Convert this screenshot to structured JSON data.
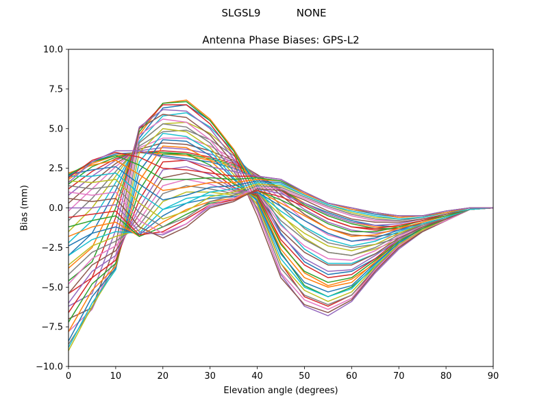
{
  "figure": {
    "suptitle": "SLGSL9           NONE"
  },
  "chart_data": {
    "type": "line",
    "title": "Antenna Phase Biases: GPS-L2",
    "xlabel": "Elevation angle (degrees)",
    "ylabel": "Bias (mm)",
    "xlim": [
      0,
      90
    ],
    "ylim": [
      -10,
      10
    ],
    "xticks": [
      0,
      10,
      20,
      30,
      40,
      50,
      60,
      70,
      80,
      90
    ],
    "yticks": [
      -10.0,
      -7.5,
      -5.0,
      -2.5,
      0.0,
      2.5,
      5.0,
      7.5,
      10.0
    ],
    "xtick_labels": [
      "0",
      "10",
      "20",
      "30",
      "40",
      "50",
      "60",
      "70",
      "80",
      "90"
    ],
    "ytick_labels": [
      "−10.0",
      "−7.5",
      "−5.0",
      "−2.5",
      "0.0",
      "2.5",
      "5.0",
      "7.5",
      "10.0"
    ],
    "grid": false,
    "legend": "none",
    "x": [
      0,
      5,
      10,
      15,
      20,
      25,
      30,
      35,
      40,
      45,
      50,
      55,
      60,
      65,
      70,
      75,
      80,
      85,
      90
    ],
    "colors": [
      "#1f77b4",
      "#ff7f0e",
      "#2ca02c",
      "#d62728",
      "#9467bd",
      "#8c564b",
      "#e377c2",
      "#7f7f7f",
      "#bcbd22",
      "#17becf"
    ],
    "series": [
      {
        "values": [
          2.0,
          2.9,
          3.4,
          3.5,
          3.3,
          3.1,
          2.9,
          2.5,
          1.9,
          1.1,
          0.3,
          -0.3,
          -0.8,
          -1.1,
          -1.2,
          -1.0,
          -0.6,
          -0.1,
          0.0
        ]
      },
      {
        "values": [
          1.8,
          2.8,
          3.3,
          3.5,
          3.4,
          3.3,
          3.0,
          2.6,
          2.0,
          1.2,
          0.3,
          -0.4,
          -0.9,
          -1.2,
          -1.2,
          -1.0,
          -0.6,
          -0.1,
          0.0
        ]
      },
      {
        "values": [
          1.5,
          2.6,
          3.2,
          3.5,
          3.5,
          3.4,
          3.1,
          2.7,
          2.1,
          1.2,
          0.2,
          -0.5,
          -1.0,
          -1.3,
          -1.3,
          -1.0,
          -0.6,
          -0.1,
          0.0
        ]
      },
      {
        "values": [
          1.2,
          2.3,
          3.1,
          3.5,
          3.6,
          3.5,
          3.2,
          2.8,
          2.1,
          1.1,
          0.1,
          -0.7,
          -1.2,
          -1.4,
          -1.3,
          -1.0,
          -0.6,
          -0.1,
          0.0
        ]
      },
      {
        "values": [
          0.8,
          2.0,
          3.0,
          3.6,
          3.8,
          3.7,
          3.4,
          2.9,
          2.1,
          1.0,
          -0.1,
          -0.9,
          -1.4,
          -1.6,
          -1.4,
          -1.1,
          -0.6,
          -0.1,
          0.0
        ]
      },
      {
        "values": [
          0.3,
          1.6,
          2.8,
          3.7,
          4.1,
          4.0,
          3.6,
          3.0,
          2.1,
          0.8,
          -0.4,
          -1.3,
          -1.7,
          -1.8,
          -1.6,
          -1.1,
          -0.7,
          -0.1,
          0.0
        ]
      },
      {
        "values": [
          -0.2,
          1.2,
          2.6,
          3.8,
          4.4,
          4.4,
          3.9,
          3.1,
          2.0,
          0.5,
          -0.8,
          -1.7,
          -2.1,
          -2.0,
          -1.7,
          -1.2,
          -0.7,
          -0.1,
          0.0
        ]
      },
      {
        "values": [
          -0.8,
          0.6,
          2.3,
          3.9,
          4.8,
          4.9,
          4.3,
          3.3,
          1.9,
          0.1,
          -1.3,
          -2.2,
          -2.5,
          -2.3,
          -1.9,
          -1.3,
          -0.7,
          -0.1,
          0.0
        ]
      },
      {
        "values": [
          -1.5,
          0.0,
          2.0,
          4.1,
          5.3,
          5.4,
          4.7,
          3.4,
          1.7,
          -0.4,
          -1.9,
          -2.8,
          -3.0,
          -2.6,
          -2.0,
          -1.4,
          -0.7,
          -0.1,
          0.0
        ]
      },
      {
        "values": [
          -2.2,
          -0.8,
          1.6,
          4.2,
          5.8,
          6.0,
          5.1,
          3.6,
          1.5,
          -1.0,
          -2.6,
          -3.5,
          -3.5,
          -2.9,
          -2.2,
          -1.5,
          -0.8,
          -0.1,
          0.0
        ]
      },
      {
        "values": [
          -3.0,
          -1.6,
          1.1,
          4.4,
          6.3,
          6.5,
          5.5,
          3.7,
          1.3,
          -1.6,
          -3.4,
          -4.2,
          -4.0,
          -3.2,
          -2.3,
          -1.5,
          -0.8,
          -0.1,
          0.0
        ]
      },
      {
        "values": [
          -3.8,
          -2.5,
          0.6,
          4.6,
          6.6,
          6.8,
          5.6,
          3.7,
          1.0,
          -2.2,
          -4.1,
          -4.9,
          -4.5,
          -3.5,
          -2.4,
          -1.5,
          -0.8,
          -0.1,
          0.0
        ]
      },
      {
        "values": [
          -4.6,
          -3.4,
          0.0,
          4.8,
          6.6,
          6.7,
          5.5,
          3.6,
          0.7,
          -2.8,
          -4.9,
          -5.6,
          -5.0,
          -3.7,
          -2.5,
          -1.5,
          -0.8,
          -0.1,
          0.0
        ]
      },
      {
        "values": [
          -5.4,
          -4.4,
          -0.6,
          5.0,
          6.5,
          6.5,
          5.3,
          3.4,
          0.3,
          -3.5,
          -5.6,
          -6.2,
          -5.5,
          -3.9,
          -2.5,
          -1.5,
          -0.8,
          -0.1,
          0.0
        ]
      },
      {
        "values": [
          -6.2,
          -5.4,
          -1.4,
          5.1,
          6.2,
          6.1,
          5.0,
          3.1,
          -0.1,
          -4.2,
          -6.2,
          -6.8,
          -5.9,
          -4.1,
          -2.6,
          -1.5,
          -0.8,
          -0.1,
          0.0
        ]
      },
      {
        "values": [
          -7.0,
          -6.3,
          -2.3,
          5.0,
          5.9,
          5.7,
          4.6,
          2.8,
          -0.5,
          -4.4,
          -6.1,
          -6.6,
          -5.8,
          -4.0,
          -2.5,
          -1.5,
          -0.8,
          -0.1,
          0.0
        ]
      },
      {
        "values": [
          -7.8,
          -6.4,
          -3.0,
          4.6,
          5.6,
          5.4,
          4.3,
          2.5,
          -0.2,
          -4.1,
          -5.8,
          -6.4,
          -5.7,
          -3.9,
          -2.4,
          -1.4,
          -0.8,
          -0.1,
          0.0
        ]
      },
      {
        "values": [
          -8.6,
          -6.3,
          -3.5,
          4.1,
          5.3,
          5.1,
          4.1,
          2.3,
          0.0,
          -3.8,
          -5.5,
          -6.1,
          -5.5,
          -3.8,
          -2.3,
          -1.4,
          -0.7,
          -0.1,
          0.0
        ]
      },
      {
        "values": [
          -9.0,
          -6.2,
          -3.8,
          3.5,
          5.0,
          4.8,
          3.8,
          2.1,
          0.2,
          -3.5,
          -5.2,
          -5.9,
          -5.3,
          -3.7,
          -2.3,
          -1.4,
          -0.7,
          -0.1,
          0.0
        ]
      },
      {
        "values": [
          -8.8,
          -6.0,
          -3.9,
          2.9,
          4.7,
          4.5,
          3.6,
          1.9,
          0.4,
          -3.2,
          -5.0,
          -5.6,
          -5.1,
          -3.6,
          -2.2,
          -1.3,
          -0.7,
          -0.1,
          0.0
        ]
      },
      {
        "values": [
          -8.4,
          -5.6,
          -3.8,
          2.3,
          4.3,
          4.2,
          3.3,
          1.8,
          0.5,
          -2.9,
          -4.7,
          -5.3,
          -4.9,
          -3.5,
          -2.2,
          -1.3,
          -0.7,
          -0.1,
          0.0
        ]
      },
      {
        "values": [
          -7.8,
          -5.2,
          -3.7,
          1.7,
          3.9,
          3.8,
          3.0,
          1.6,
          0.6,
          -2.6,
          -4.4,
          -5.0,
          -4.7,
          -3.4,
          -2.1,
          -1.3,
          -0.7,
          -0.1,
          0.0
        ]
      },
      {
        "values": [
          -7.2,
          -4.8,
          -3.5,
          1.1,
          3.4,
          3.4,
          2.7,
          1.5,
          0.7,
          -2.3,
          -4.0,
          -4.7,
          -4.4,
          -3.3,
          -2.1,
          -1.3,
          -0.7,
          -0.1,
          0.0
        ]
      },
      {
        "values": [
          -6.6,
          -4.4,
          -3.3,
          0.5,
          2.9,
          3.0,
          2.4,
          1.3,
          0.8,
          -2.0,
          -3.6,
          -4.4,
          -4.2,
          -3.2,
          -2.0,
          -1.2,
          -0.7,
          -0.1,
          0.0
        ]
      },
      {
        "values": [
          -6.0,
          -4.0,
          -3.0,
          0.0,
          2.4,
          2.6,
          2.1,
          1.2,
          0.9,
          -1.7,
          -3.2,
          -4.0,
          -3.9,
          -3.0,
          -2.0,
          -1.2,
          -0.7,
          -0.1,
          0.0
        ]
      },
      {
        "values": [
          -5.4,
          -3.6,
          -2.7,
          -0.4,
          1.9,
          2.2,
          1.8,
          1.1,
          0.9,
          -1.4,
          -2.8,
          -3.6,
          -3.6,
          -2.9,
          -1.9,
          -1.2,
          -0.7,
          -0.1,
          0.0
        ]
      },
      {
        "values": [
          -4.8,
          -3.2,
          -2.4,
          -0.8,
          1.4,
          1.8,
          1.5,
          1.0,
          1.0,
          -1.1,
          -2.4,
          -3.2,
          -3.3,
          -2.7,
          -1.8,
          -1.1,
          -0.6,
          -0.1,
          0.0
        ]
      },
      {
        "values": [
          -4.2,
          -2.8,
          -2.1,
          -1.1,
          0.9,
          1.4,
          1.2,
          0.9,
          1.0,
          -0.8,
          -2.0,
          -2.8,
          -3.0,
          -2.5,
          -1.7,
          -1.1,
          -0.6,
          -0.1,
          0.0
        ]
      },
      {
        "values": [
          -3.6,
          -2.4,
          -1.8,
          -1.4,
          0.4,
          1.0,
          1.0,
          0.8,
          1.0,
          -0.5,
          -1.6,
          -2.4,
          -2.7,
          -2.3,
          -1.6,
          -1.0,
          -0.6,
          -0.1,
          0.0
        ]
      },
      {
        "values": [
          -3.0,
          -2.0,
          -1.5,
          -1.6,
          -0.1,
          0.6,
          0.8,
          0.7,
          1.0,
          -0.2,
          -1.2,
          -2.0,
          -2.4,
          -2.1,
          -1.5,
          -1.0,
          -0.6,
          -0.1,
          0.0
        ]
      },
      {
        "values": [
          -2.4,
          -1.6,
          -1.2,
          -1.7,
          -0.5,
          0.3,
          0.6,
          0.7,
          1.0,
          0.1,
          -0.8,
          -1.6,
          -2.1,
          -1.9,
          -1.4,
          -0.9,
          -0.5,
          -0.1,
          0.0
        ]
      },
      {
        "values": [
          -1.8,
          -1.2,
          -0.9,
          -1.8,
          -0.9,
          -0.1,
          0.4,
          0.6,
          1.1,
          0.3,
          -0.5,
          -1.3,
          -1.8,
          -1.7,
          -1.3,
          -0.9,
          -0.5,
          -0.1,
          0.0
        ]
      },
      {
        "values": [
          -1.2,
          -0.8,
          -0.5,
          -1.8,
          -1.2,
          -0.4,
          0.3,
          0.5,
          1.1,
          0.5,
          -0.2,
          -1.0,
          -1.5,
          -1.5,
          -1.2,
          -0.8,
          -0.5,
          -0.1,
          0.0
        ]
      },
      {
        "values": [
          -0.6,
          -0.4,
          -0.2,
          -1.7,
          -1.5,
          -0.7,
          0.2,
          0.5,
          1.1,
          0.7,
          0.1,
          -0.7,
          -1.2,
          -1.3,
          -1.1,
          -0.8,
          -0.4,
          -0.1,
          0.0
        ]
      },
      {
        "values": [
          0.0,
          0.0,
          0.2,
          -1.5,
          -1.7,
          -1.0,
          0.1,
          0.4,
          1.2,
          0.9,
          0.3,
          -0.4,
          -0.9,
          -1.1,
          -1.0,
          -0.7,
          -0.4,
          -0.1,
          0.0
        ]
      },
      {
        "values": [
          0.6,
          0.4,
          0.6,
          -1.2,
          -1.9,
          -1.2,
          0.0,
          0.4,
          1.2,
          1.1,
          0.5,
          -0.2,
          -0.7,
          -0.9,
          -0.9,
          -0.7,
          -0.4,
          -0.1,
          0.0
        ]
      },
      {
        "values": [
          1.0,
          0.8,
          1.0,
          -0.8,
          -1.6,
          -1.0,
          0.2,
          0.6,
          1.3,
          1.2,
          0.6,
          0.0,
          -0.5,
          -0.8,
          -0.8,
          -0.6,
          -0.3,
          -0.1,
          0.0
        ]
      },
      {
        "values": [
          1.4,
          1.2,
          1.4,
          -0.3,
          -1.2,
          -0.6,
          0.4,
          0.8,
          1.4,
          1.3,
          0.7,
          0.1,
          -0.4,
          -0.7,
          -0.8,
          -0.6,
          -0.3,
          -0.1,
          0.0
        ]
      },
      {
        "values": [
          1.7,
          1.6,
          1.8,
          0.3,
          -0.7,
          -0.2,
          0.7,
          1.0,
          1.5,
          1.4,
          0.8,
          0.2,
          -0.3,
          -0.6,
          -0.7,
          -0.6,
          -0.3,
          -0.1,
          0.0
        ]
      },
      {
        "values": [
          2.0,
          2.0,
          2.2,
          0.9,
          -0.1,
          0.3,
          1.0,
          1.2,
          1.6,
          1.5,
          0.8,
          0.2,
          -0.2,
          -0.5,
          -0.7,
          -0.6,
          -0.3,
          -0.1,
          0.0
        ]
      },
      {
        "values": [
          2.1,
          2.4,
          2.6,
          1.5,
          0.5,
          0.8,
          1.3,
          1.4,
          1.7,
          1.6,
          0.9,
          0.3,
          -0.1,
          -0.4,
          -0.6,
          -0.5,
          -0.3,
          0.0,
          0.0
        ]
      },
      {
        "values": [
          2.2,
          2.7,
          3.0,
          2.1,
          1.1,
          1.3,
          1.6,
          1.6,
          1.8,
          1.7,
          0.9,
          0.3,
          -0.1,
          -0.3,
          -0.6,
          -0.5,
          -0.3,
          0.0,
          0.0
        ]
      },
      {
        "values": [
          2.1,
          2.9,
          3.3,
          2.7,
          1.8,
          1.8,
          1.9,
          1.8,
          1.9,
          1.7,
          1.0,
          0.3,
          0.0,
          -0.3,
          -0.5,
          -0.5,
          -0.2,
          0.0,
          0.0
        ]
      },
      {
        "values": [
          1.9,
          3.0,
          3.5,
          3.2,
          2.5,
          2.4,
          2.2,
          2.0,
          2.0,
          1.8,
          1.0,
          0.3,
          0.0,
          -0.3,
          -0.5,
          -0.5,
          -0.2,
          0.0,
          0.0
        ]
      },
      {
        "values": [
          1.6,
          2.9,
          3.6,
          3.6,
          3.2,
          3.0,
          2.6,
          2.3,
          2.0,
          1.8,
          1.0,
          0.3,
          0.0,
          -0.3,
          -0.5,
          -0.5,
          -0.2,
          0.0,
          0.0
        ]
      }
    ]
  }
}
